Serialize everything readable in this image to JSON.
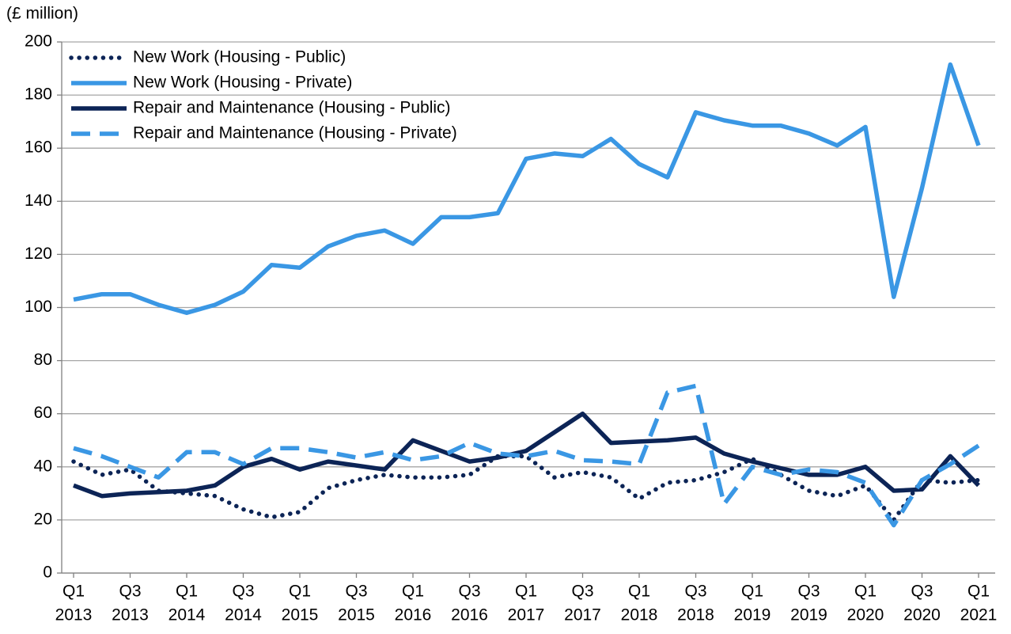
{
  "chart_data": {
    "type": "line",
    "y_axis_label": "(£ million)",
    "categories": [
      [
        "Q1",
        "2013"
      ],
      null,
      [
        "Q3",
        "2013"
      ],
      null,
      [
        "Q1",
        "2014"
      ],
      null,
      [
        "Q3",
        "2014"
      ],
      null,
      [
        "Q1",
        "2015"
      ],
      null,
      [
        "Q3",
        "2015"
      ],
      null,
      [
        "Q1",
        "2016"
      ],
      null,
      [
        "Q3",
        "2016"
      ],
      null,
      [
        "Q1",
        "2017"
      ],
      null,
      [
        "Q3",
        "2017"
      ],
      null,
      [
        "Q1",
        "2018"
      ],
      null,
      [
        "Q3",
        "2018"
      ],
      null,
      [
        "Q1",
        "2019"
      ],
      null,
      [
        "Q3",
        "2019"
      ],
      null,
      [
        "Q1",
        "2020"
      ],
      null,
      [
        "Q3",
        "2020"
      ],
      null,
      [
        "Q1",
        "2021"
      ]
    ],
    "series": [
      {
        "name": "New Work (Housing - Public)",
        "color": "#0c2456",
        "style": "dotted",
        "values": [
          42,
          37,
          39,
          31,
          30,
          29,
          24,
          21,
          23,
          32,
          35,
          37,
          36,
          36,
          37,
          44,
          44,
          36,
          38,
          36,
          28,
          34,
          35,
          38,
          43,
          37,
          31,
          29,
          33,
          20,
          35,
          34,
          35
        ]
      },
      {
        "name": "New Work (Housing - Private)",
        "color": "#3a97e4",
        "style": "solid",
        "values": [
          103,
          105,
          105,
          101,
          98,
          101,
          106,
          116,
          115,
          123,
          127,
          129,
          124,
          134,
          134,
          135.5,
          156,
          158,
          157,
          163.5,
          154,
          149,
          173.5,
          170.5,
          168.5,
          168.5,
          165.5,
          161,
          168,
          104,
          145,
          191.5,
          161
        ]
      },
      {
        "name": "Repair and Maintenance (Housing - Public)",
        "color": "#0c2456",
        "style": "solid",
        "values": [
          33,
          29,
          30,
          30.5,
          31,
          33,
          40,
          43,
          39,
          42,
          40.5,
          39,
          50,
          46,
          42,
          43.5,
          46,
          53,
          60,
          49,
          49.5,
          50,
          51,
          45,
          42,
          39.5,
          37,
          37,
          40,
          31,
          31.5,
          44,
          33
        ]
      },
      {
        "name": "Repair and Maintenance (Housing - Private)",
        "color": "#3a97e4",
        "style": "dashed",
        "values": [
          47,
          44,
          40,
          36,
          45.5,
          45.5,
          41,
          47,
          47,
          45.5,
          43.5,
          45.5,
          42.5,
          44,
          49,
          45,
          44,
          46,
          42.5,
          42,
          41,
          68,
          70.5,
          26,
          40,
          37,
          39,
          38,
          34,
          18,
          35,
          41,
          48
        ]
      }
    ],
    "ylim": [
      0,
      200
    ],
    "yticks": [
      0,
      20,
      40,
      60,
      80,
      100,
      120,
      140,
      160,
      180,
      200
    ],
    "grid": true,
    "legend": "top-left"
  }
}
